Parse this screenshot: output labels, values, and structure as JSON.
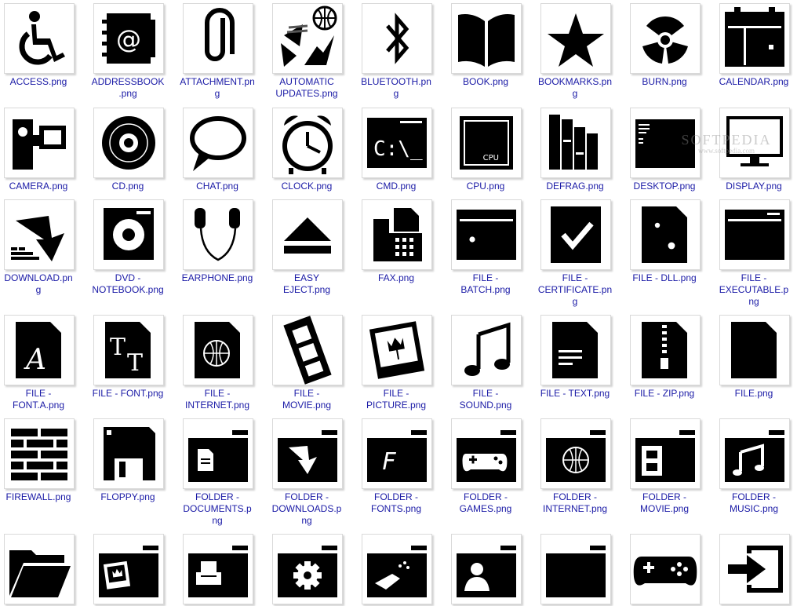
{
  "watermark": {
    "brand": "SOFTPEDIA",
    "url": "www.softpedia.com"
  },
  "icons": [
    {
      "label": "ACCESS.png",
      "icon": "wheelchair-icon"
    },
    {
      "label": "ADDRESSBOOK.png",
      "icon": "address-book-icon"
    },
    {
      "label": "ATTACHMENT.png",
      "icon": "paperclip-icon"
    },
    {
      "label": "AUTOMATIC UPDATES.png",
      "icon": "globe-arrows-icon"
    },
    {
      "label": "BLUETOOTH.png",
      "icon": "bluetooth-icon"
    },
    {
      "label": "BOOK.png",
      "icon": "open-book-icon"
    },
    {
      "label": "BOOKMARKS.png",
      "icon": "star-icon"
    },
    {
      "label": "BURN.png",
      "icon": "radiation-icon"
    },
    {
      "label": "CALENDAR.png",
      "icon": "calendar-icon"
    },
    {
      "label": "CAMERA.png",
      "icon": "video-camera-icon"
    },
    {
      "label": "CD.png",
      "icon": "disc-icon"
    },
    {
      "label": "CHAT.png",
      "icon": "speech-bubble-icon"
    },
    {
      "label": "CLOCK.png",
      "icon": "alarm-clock-icon"
    },
    {
      "label": "CMD.png",
      "icon": "command-prompt-icon"
    },
    {
      "label": "CPU.png",
      "icon": "cpu-chip-icon"
    },
    {
      "label": "DEFRAG.png",
      "icon": "defrag-blocks-icon"
    },
    {
      "label": "DESKTOP.png",
      "icon": "desktop-window-icon"
    },
    {
      "label": "DISPLAY.png",
      "icon": "monitor-icon"
    },
    {
      "label": "DOWNLOAD.png",
      "icon": "download-arrow-icon"
    },
    {
      "label": "DVD - NOTEBOOK.png",
      "icon": "dvd-drive-icon"
    },
    {
      "label": "EARPHONE.png",
      "icon": "earphones-icon"
    },
    {
      "label": "EASY EJECT.png",
      "icon": "eject-icon"
    },
    {
      "label": "FAX.png",
      "icon": "fax-machine-icon"
    },
    {
      "label": "FILE - BATCH.png",
      "icon": "batch-gear-window-icon"
    },
    {
      "label": "FILE - CERTIFICATE.png",
      "icon": "certificate-icon"
    },
    {
      "label": "FILE - DLL.png",
      "icon": "dll-gears-icon"
    },
    {
      "label": "FILE - EXECUTABLE.png",
      "icon": "executable-window-icon"
    },
    {
      "label": "FILE - FONT.A.png",
      "icon": "font-file-icon"
    },
    {
      "label": "FILE - FONT.png",
      "icon": "font-tt-icon"
    },
    {
      "label": "FILE - INTERNET.png",
      "icon": "internet-file-icon"
    },
    {
      "label": "FILE - MOVIE.png",
      "icon": "film-strip-icon"
    },
    {
      "label": "FILE - PICTURE.png",
      "icon": "picture-tulip-icon"
    },
    {
      "label": "FILE - SOUND.png",
      "icon": "music-note-icon"
    },
    {
      "label": "FILE - TEXT.png",
      "icon": "text-file-icon"
    },
    {
      "label": "FILE - ZIP.png",
      "icon": "zip-file-icon"
    },
    {
      "label": "FILE.png",
      "icon": "blank-file-icon"
    },
    {
      "label": "FIREWALL.png",
      "icon": "brick-wall-icon"
    },
    {
      "label": "FLOPPY.png",
      "icon": "floppy-disk-icon"
    },
    {
      "label": "FOLDER - DOCUMENTS.png",
      "icon": "folder-documents-icon"
    },
    {
      "label": "FOLDER - DOWNLOADS.png",
      "icon": "folder-downloads-icon"
    },
    {
      "label": "FOLDER - FONTS.png",
      "icon": "folder-fonts-icon"
    },
    {
      "label": "FOLDER - GAMES.png",
      "icon": "folder-games-icon"
    },
    {
      "label": "FOLDER - INTERNET.png",
      "icon": "folder-internet-icon"
    },
    {
      "label": "FOLDER - MOVIE.png",
      "icon": "folder-movie-icon"
    },
    {
      "label": "FOLDER - MUSIC.png",
      "icon": "folder-music-icon"
    },
    {
      "label": "",
      "icon": "open-folder-icon"
    },
    {
      "label": "",
      "icon": "folder-pictures-icon"
    },
    {
      "label": "",
      "icon": "folder-printer-icon"
    },
    {
      "label": "",
      "icon": "folder-settings-icon"
    },
    {
      "label": "",
      "icon": "folder-cleanup-icon"
    },
    {
      "label": "",
      "icon": "folder-user-icon"
    },
    {
      "label": "",
      "icon": "folder-blank-icon"
    },
    {
      "label": "",
      "icon": "gamepad-icon"
    },
    {
      "label": "",
      "icon": "import-arrow-icon"
    }
  ]
}
